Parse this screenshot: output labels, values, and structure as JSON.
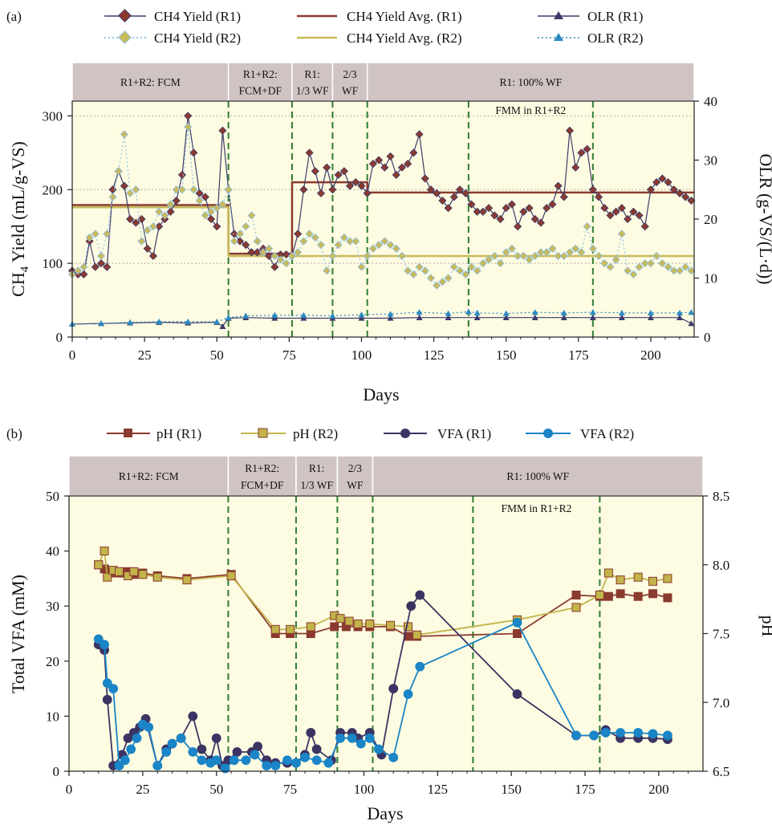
{
  "colors": {
    "plot_bg": "#fdfbe1",
    "phase_band": "#cfc4c3",
    "r1_methane": "#8b3a2f",
    "r1_line": "#3d3a6b",
    "r2_methane": "#c8b95a",
    "r2_line": "#8ec1e6",
    "olr_r2": "#2b8ac2",
    "ph_r1": "#8b3a2f",
    "ph_r2": "#c2b44a",
    "vfa_r1": "#3b3463",
    "vfa_r2": "#1a85c7",
    "phase_boundary": "#2e7d32",
    "gridline": "#999999"
  },
  "chart_data": [
    {
      "panel": "(a)",
      "type": "line",
      "xlabel": "Days",
      "ylabel_left": "CH4 Yield (mL/g-VS)",
      "ylabel_right": "OLR (g-VS/(L·d))",
      "xlim": [
        0,
        215
      ],
      "ylim_left": [
        0,
        320
      ],
      "ylim_right": [
        0,
        40
      ],
      "xticks": [
        "0",
        "25",
        "50",
        "75",
        "100",
        "125",
        "150",
        "175",
        "200"
      ],
      "yticks_left": [
        "0",
        "100",
        "200",
        "300"
      ],
      "yticks_right": [
        "0",
        "10",
        "20",
        "30",
        "40"
      ],
      "grid": "horizontal dotted at 100, 200, 300",
      "legend_position": "top",
      "legend": [
        "CH4 Yield (R1)",
        "CH4 Yield (R2)",
        "CH4 Yield Avg. (R1)",
        "CH4 Yield Avg. (R2)",
        "OLR (R1)",
        "OLR (R2)"
      ],
      "phases": [
        {
          "label1": "R1+R2: FCM",
          "label2": "",
          "start": 0,
          "end": 54
        },
        {
          "label1": "R1+R2:",
          "label2": "FCM+DF",
          "start": 54,
          "end": 76
        },
        {
          "label1": "R1:",
          "label2": "1/3 WF",
          "start": 76,
          "end": 90
        },
        {
          "label1": "2/3",
          "label2": "WF",
          "start": 90,
          "end": 102
        },
        {
          "label1": "R1: 100% WF",
          "label2": "",
          "start": 102,
          "end": 215
        }
      ],
      "phase_boundaries": [
        54,
        76,
        90,
        102,
        137,
        180
      ],
      "annotation": "FMM in R1+R2",
      "avg_lines": {
        "R1": [
          {
            "x": [
              0,
              54
            ],
            "y": 179
          },
          {
            "x": [
              54,
              76
            ],
            "y": 113
          },
          {
            "x": [
              76,
              102
            ],
            "y": 210
          },
          {
            "x": [
              102,
              215
            ],
            "y": 196
          }
        ],
        "R2": [
          {
            "x": [
              0,
              54
            ],
            "y": 176
          },
          {
            "x": [
              54,
              215
            ],
            "y": 110
          }
        ]
      },
      "series": [
        {
          "name": "CH4 Yield (R1)",
          "axis": "left",
          "x": [
            0,
            2,
            4,
            6,
            8,
            10,
            12,
            14,
            16,
            18,
            20,
            22,
            24,
            26,
            28,
            30,
            32,
            34,
            36,
            38,
            40,
            42,
            44,
            46,
            48,
            50,
            52,
            54,
            56,
            58,
            60,
            62,
            64,
            66,
            68,
            70,
            72,
            74,
            76,
            78,
            80,
            82,
            84,
            86,
            88,
            90,
            92,
            94,
            96,
            98,
            100,
            102,
            104,
            106,
            108,
            110,
            112,
            114,
            116,
            118,
            120,
            122,
            124,
            126,
            128,
            130,
            132,
            134,
            136,
            138,
            140,
            142,
            144,
            146,
            148,
            150,
            152,
            154,
            156,
            158,
            160,
            162,
            164,
            166,
            168,
            170,
            172,
            174,
            176,
            178,
            180,
            182,
            184,
            186,
            188,
            190,
            192,
            194,
            196,
            198,
            200,
            202,
            204,
            206,
            208,
            210,
            212,
            214
          ],
          "y": [
            90,
            85,
            85,
            130,
            95,
            100,
            95,
            200,
            225,
            205,
            160,
            155,
            160,
            120,
            110,
            150,
            160,
            170,
            185,
            220,
            300,
            250,
            195,
            190,
            160,
            150,
            280,
            200,
            140,
            130,
            125,
            115,
            115,
            120,
            110,
            95,
            112,
            112,
            110,
            140,
            200,
            250,
            225,
            195,
            230,
            200,
            220,
            225,
            205,
            210,
            205,
            195,
            235,
            240,
            230,
            245,
            220,
            230,
            235,
            250,
            275,
            215,
            200,
            195,
            185,
            175,
            190,
            200,
            195,
            180,
            170,
            170,
            175,
            165,
            160,
            175,
            180,
            150,
            170,
            175,
            160,
            155,
            175,
            180,
            205,
            190,
            280,
            230,
            250,
            255,
            200,
            190,
            175,
            165,
            170,
            175,
            160,
            170,
            165,
            150,
            200,
            210,
            215,
            210,
            200,
            195,
            190,
            185
          ]
        },
        {
          "name": "CH4 Yield (R2)",
          "axis": "left",
          "x": [
            0,
            2,
            4,
            6,
            8,
            10,
            12,
            14,
            16,
            18,
            20,
            22,
            24,
            26,
            28,
            30,
            32,
            34,
            36,
            38,
            40,
            42,
            44,
            46,
            48,
            50,
            52,
            54,
            56,
            58,
            60,
            62,
            64,
            66,
            68,
            70,
            72,
            74,
            76,
            78,
            80,
            82,
            84,
            86,
            88,
            90,
            92,
            94,
            96,
            98,
            100,
            102,
            104,
            106,
            108,
            110,
            112,
            114,
            116,
            118,
            120,
            122,
            124,
            126,
            128,
            130,
            132,
            134,
            136,
            138,
            140,
            142,
            144,
            146,
            148,
            150,
            152,
            154,
            156,
            158,
            160,
            162,
            164,
            166,
            168,
            170,
            172,
            174,
            176,
            178,
            180,
            182,
            184,
            186,
            188,
            190,
            192,
            194,
            196,
            198,
            200,
            202,
            204,
            206,
            208,
            210,
            212,
            214
          ],
          "y": [
            85,
            90,
            95,
            135,
            140,
            110,
            140,
            190,
            225,
            275,
            195,
            200,
            130,
            145,
            150,
            170,
            165,
            180,
            200,
            200,
            285,
            200,
            185,
            165,
            170,
            175,
            180,
            200,
            130,
            140,
            150,
            165,
            130,
            115,
            120,
            110,
            105,
            100,
            110,
            115,
            130,
            140,
            135,
            125,
            90,
            110,
            125,
            135,
            130,
            130,
            95,
            110,
            120,
            125,
            130,
            125,
            120,
            110,
            90,
            85,
            95,
            90,
            80,
            70,
            75,
            80,
            95,
            90,
            85,
            95,
            90,
            100,
            105,
            110,
            100,
            115,
            120,
            110,
            110,
            105,
            110,
            115,
            115,
            120,
            110,
            110,
            115,
            120,
            115,
            150,
            120,
            110,
            100,
            95,
            105,
            140,
            90,
            85,
            95,
            100,
            100,
            110,
            100,
            95,
            90,
            90,
            95,
            90
          ]
        },
        {
          "name": "OLR (R1)",
          "axis": "right",
          "x": [
            0,
            10,
            20,
            30,
            40,
            50,
            52,
            54,
            60,
            70,
            80,
            90,
            100,
            110,
            120,
            130,
            140,
            150,
            160,
            170,
            180,
            190,
            200,
            210,
            214
          ],
          "y": [
            2.2,
            2.3,
            2.4,
            2.5,
            2.4,
            2.5,
            1.8,
            3.2,
            3.3,
            3.2,
            3.2,
            3.2,
            3.2,
            3.2,
            3.3,
            3.3,
            3.3,
            3.3,
            3.3,
            3.3,
            3.3,
            3.3,
            3.3,
            3.3,
            2.3
          ]
        },
        {
          "name": "OLR (R2)",
          "axis": "right",
          "x": [
            0,
            10,
            20,
            30,
            40,
            50,
            54,
            60,
            70,
            80,
            90,
            100,
            110,
            120,
            130,
            137,
            140,
            150,
            160,
            170,
            180,
            190,
            200,
            210,
            214
          ],
          "y": [
            2.2,
            2.3,
            2.5,
            2.6,
            2.6,
            2.6,
            3.3,
            3.6,
            3.7,
            3.7,
            3.6,
            3.8,
            3.9,
            4.2,
            4.0,
            4.3,
            4.1,
            4.0,
            4.2,
            4.1,
            4.2,
            4.1,
            4.1,
            4.1,
            4.2
          ]
        }
      ]
    },
    {
      "panel": "(b)",
      "type": "line",
      "xlabel": "Days",
      "ylabel_left": "Total VFA (mM)",
      "ylabel_right": "pH",
      "xlim": [
        0,
        215
      ],
      "ylim_left": [
        0,
        50
      ],
      "ylim_right": [
        6.5,
        8.5
      ],
      "xticks": [
        "0",
        "25",
        "50",
        "75",
        "100",
        "125",
        "150",
        "175",
        "200"
      ],
      "yticks_left": [
        "0",
        "10",
        "20",
        "30",
        "40",
        "50"
      ],
      "yticks_right": [
        "6.5",
        "7.0",
        "7.5",
        "8.0",
        "8.5"
      ],
      "grid": "off",
      "legend_position": "top",
      "legend": [
        "pH (R1)",
        "pH (R2)",
        "VFA (R1)",
        "VFA (R2)"
      ],
      "phases": [
        {
          "label1": "R1+R2: FCM",
          "label2": "",
          "start": 0,
          "end": 54
        },
        {
          "label1": "R1+R2:",
          "label2": "FCM+DF",
          "start": 54,
          "end": 77
        },
        {
          "label1": "R1:",
          "label2": "1/3 WF",
          "start": 77,
          "end": 91
        },
        {
          "label1": "2/3",
          "label2": "WF",
          "start": 91,
          "end": 103
        },
        {
          "label1": "R1: 100% WF",
          "label2": "",
          "start": 103,
          "end": 215
        }
      ],
      "phase_boundaries": [
        54,
        77,
        91,
        103,
        137,
        180
      ],
      "annotation": "FMM in R1+R2",
      "series": [
        {
          "name": "pH (R1)",
          "axis": "right",
          "x": [
            10,
            12,
            14,
            17,
            20,
            22,
            25,
            30,
            40,
            55,
            70,
            75,
            82,
            90,
            94,
            98,
            102,
            109,
            115,
            118,
            152,
            172,
            180,
            183,
            187,
            193,
            198,
            203
          ],
          "y": [
            8.0,
            7.97,
            7.94,
            7.94,
            7.95,
            7.93,
            7.94,
            7.92,
            7.9,
            7.93,
            7.5,
            7.5,
            7.5,
            7.55,
            7.55,
            7.55,
            7.55,
            7.55,
            7.48,
            7.48,
            7.5,
            7.78,
            7.77,
            7.77,
            7.79,
            7.77,
            7.79,
            7.76
          ]
        },
        {
          "name": "pH (R2)",
          "axis": "right",
          "x": [
            10,
            12,
            13,
            15,
            17,
            20,
            22,
            25,
            30,
            40,
            55,
            70,
            75,
            82,
            90,
            92,
            95,
            98,
            102,
            109,
            115,
            118,
            152,
            172,
            180,
            183,
            187,
            193,
            198,
            203
          ],
          "y": [
            8.0,
            8.1,
            7.91,
            7.96,
            7.95,
            7.92,
            7.95,
            7.93,
            7.91,
            7.89,
            7.92,
            7.53,
            7.53,
            7.55,
            7.63,
            7.61,
            7.59,
            7.57,
            7.57,
            7.56,
            7.55,
            7.49,
            7.6,
            7.69,
            7.78,
            7.94,
            7.89,
            7.91,
            7.88,
            7.9
          ]
        },
        {
          "name": "VFA (R1)",
          "axis": "left",
          "x": [
            10,
            12,
            13,
            15,
            18,
            20,
            22,
            24,
            26,
            30,
            33,
            35,
            38,
            42,
            45,
            48,
            50,
            52,
            54,
            57,
            62,
            64,
            67,
            70,
            74,
            77,
            80,
            82,
            84,
            89,
            92,
            96,
            98,
            102,
            106,
            110,
            116,
            119,
            152,
            172,
            178,
            182,
            187,
            193,
            198,
            203
          ],
          "y": [
            23,
            22,
            13,
            1,
            3,
            6,
            7,
            8,
            9.5,
            1,
            4,
            5,
            6,
            10,
            4,
            2,
            6,
            1,
            2,
            3.5,
            3.5,
            4.5,
            2,
            1.5,
            1.5,
            1.5,
            3,
            7,
            4,
            2,
            7,
            7,
            6,
            7,
            3,
            15,
            30,
            32,
            14,
            6.5,
            6.5,
            7.5,
            6,
            6,
            6,
            5.8
          ]
        },
        {
          "name": "VFA (R2)",
          "axis": "left",
          "x": [
            10,
            12,
            13,
            15,
            17,
            19,
            21,
            23,
            25,
            27,
            30,
            33,
            35,
            38,
            42,
            45,
            48,
            50,
            53,
            56,
            60,
            63,
            67,
            70,
            74,
            77,
            80,
            84,
            88,
            92,
            96,
            99,
            102,
            105,
            110,
            115,
            119,
            152,
            172,
            178,
            182,
            187,
            193,
            198,
            203
          ],
          "y": [
            24,
            23,
            16,
            15,
            1,
            2,
            4,
            6,
            8.5,
            8,
            1,
            3.5,
            5,
            6,
            3.5,
            2,
            1.5,
            2,
            0.5,
            2,
            2,
            3,
            1,
            1,
            2,
            1.5,
            2.5,
            2,
            1.5,
            6,
            6,
            5,
            6,
            4,
            2.5,
            14,
            19,
            27,
            6.5,
            6.5,
            7,
            7,
            7,
            6.8,
            6.5
          ]
        }
      ]
    }
  ]
}
